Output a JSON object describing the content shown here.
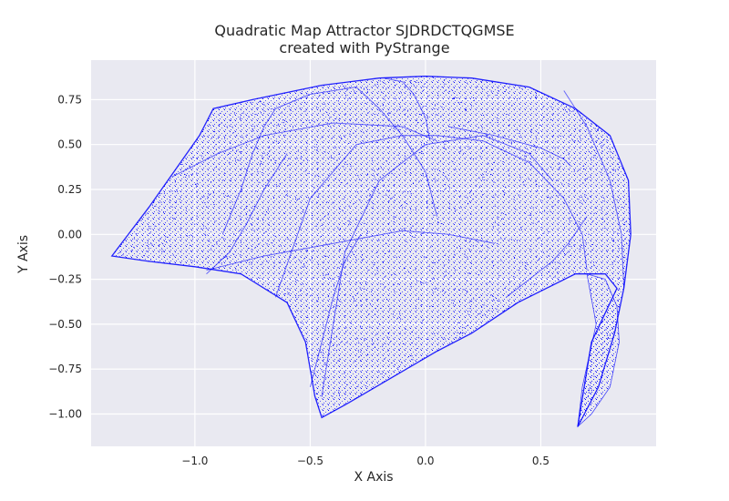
{
  "chart_data": {
    "type": "scatter",
    "title": "Quadratic Map Attractor SJDRDCTQGMSE",
    "subtitle": "created with PyStrange",
    "xlabel": "X Axis",
    "ylabel": "Y Axis",
    "xlim": [
      -1.45,
      1.0
    ],
    "ylim": [
      -1.18,
      0.97
    ],
    "x_ticks": [
      -1.0,
      -0.5,
      0.0,
      0.5
    ],
    "x_tick_labels": [
      "−1.0",
      "−0.5",
      "0.0",
      "0.5"
    ],
    "y_ticks": [
      0.75,
      0.5,
      0.25,
      0.0,
      -0.25,
      -0.5,
      -0.75,
      -1.0
    ],
    "y_tick_labels": [
      "0.75",
      "0.50",
      "0.25",
      "0.00",
      "−0.25",
      "−0.50",
      "−0.75",
      "−1.00"
    ],
    "grid": true,
    "background": "#e9e9f1",
    "grid_color": "#ffffff",
    "point_color": "#0000ff",
    "outline": {
      "x": [
        -1.36,
        -1.2,
        -0.98,
        -0.92,
        -0.75,
        -0.45,
        -0.2,
        0.0,
        0.2,
        0.45,
        0.65,
        0.8,
        0.88,
        0.89,
        0.86,
        0.82,
        0.75,
        0.66,
        0.72,
        0.83,
        0.78,
        0.65,
        0.4,
        0.2,
        0.05,
        -0.15,
        -0.35,
        -0.45,
        -0.48,
        -0.52,
        -0.6,
        -0.8,
        -1.0,
        -1.2,
        -1.36
      ],
      "y": [
        -0.12,
        0.15,
        0.55,
        0.7,
        0.75,
        0.83,
        0.87,
        0.88,
        0.87,
        0.82,
        0.7,
        0.55,
        0.3,
        0.0,
        -0.3,
        -0.55,
        -0.85,
        -1.07,
        -0.6,
        -0.3,
        -0.22,
        -0.22,
        -0.38,
        -0.55,
        -0.65,
        -0.8,
        -0.95,
        -1.02,
        -0.9,
        -0.6,
        -0.38,
        -0.22,
        -0.18,
        -0.15,
        -0.12
      ]
    },
    "curves": [
      {
        "x": [
          -0.65,
          -0.5,
          -0.3,
          -0.1,
          0.05,
          0.25,
          0.45,
          0.6,
          0.68,
          0.7
        ],
        "y": [
          -0.35,
          0.2,
          0.5,
          0.55,
          0.55,
          0.52,
          0.4,
          0.2,
          0.0,
          -0.2
        ]
      },
      {
        "x": [
          -0.45,
          -0.35,
          -0.2,
          0.0,
          0.25,
          0.45,
          0.55
        ],
        "y": [
          -0.9,
          -0.1,
          0.3,
          0.5,
          0.55,
          0.45,
          0.3
        ]
      },
      {
        "x": [
          -0.88,
          -0.8,
          -0.75,
          -0.7,
          -0.65,
          -0.5,
          -0.3
        ],
        "y": [
          0.0,
          0.25,
          0.45,
          0.6,
          0.7,
          0.78,
          0.82
        ]
      },
      {
        "x": [
          -1.1,
          -0.9,
          -0.7,
          -0.4,
          -0.1,
          0.05
        ],
        "y": [
          0.32,
          0.45,
          0.55,
          0.62,
          0.6,
          0.52
        ]
      },
      {
        "x": [
          -0.95,
          -0.7,
          -0.4,
          -0.1,
          0.1,
          0.3
        ],
        "y": [
          -0.2,
          -0.12,
          -0.05,
          0.02,
          0.0,
          -0.05
        ]
      },
      {
        "x": [
          0.02,
          0.0,
          -0.05,
          -0.1,
          -0.18
        ],
        "y": [
          0.52,
          0.65,
          0.78,
          0.85,
          0.87
        ]
      },
      {
        "x": [
          -0.3,
          -0.2,
          -0.1,
          0.0,
          0.05
        ],
        "y": [
          0.82,
          0.7,
          0.55,
          0.35,
          0.1
        ]
      },
      {
        "x": [
          0.35,
          0.45,
          0.55,
          0.62,
          0.7
        ],
        "y": [
          -0.35,
          -0.25,
          -0.15,
          -0.05,
          0.1
        ]
      },
      {
        "x": [
          -0.95,
          -0.85,
          -0.78,
          -0.7,
          -0.6
        ],
        "y": [
          -0.22,
          -0.1,
          0.05,
          0.25,
          0.45
        ]
      },
      {
        "x": [
          0.6,
          0.7,
          0.8,
          0.85,
          0.86
        ],
        "y": [
          0.8,
          0.6,
          0.3,
          0.0,
          -0.3
        ]
      },
      {
        "x": [
          0.1,
          0.3,
          0.5,
          0.6,
          0.63
        ],
        "y": [
          0.6,
          0.55,
          0.48,
          0.42,
          0.38
        ]
      },
      {
        "x": [
          -0.5,
          -0.45,
          -0.4,
          -0.35,
          -0.28
        ],
        "y": [
          -0.85,
          -0.6,
          -0.35,
          -0.15,
          0.0
        ]
      }
    ],
    "fold_region": {
      "x": [
        0.7,
        0.78,
        0.83,
        0.84,
        0.8,
        0.72,
        0.66,
        0.68,
        0.74,
        0.7
      ],
      "y": [
        -0.22,
        -0.25,
        -0.4,
        -0.6,
        -0.85,
        -1.0,
        -1.07,
        -0.85,
        -0.5,
        -0.22
      ]
    }
  }
}
